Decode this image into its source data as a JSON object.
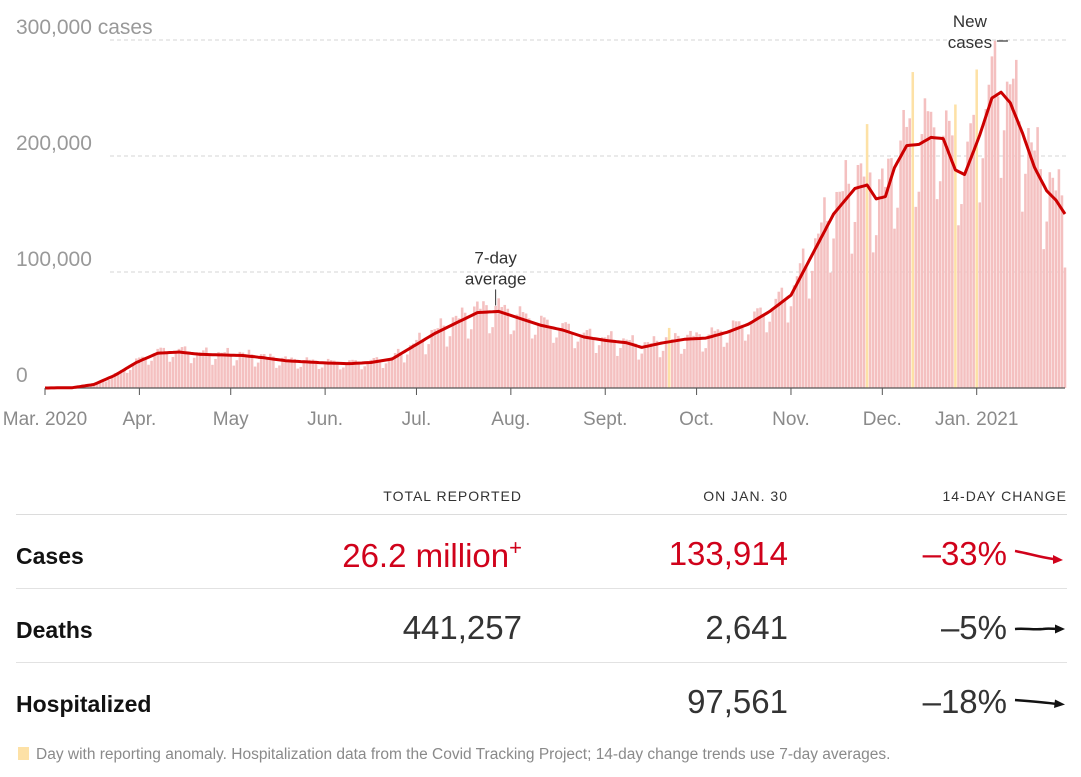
{
  "chart_data": {
    "type": "bar",
    "title": "",
    "xlabel": "",
    "ylabel": "",
    "ylim": [
      0,
      300000
    ],
    "y_ticks": [
      {
        "value": 300000,
        "label": "300,000 cases"
      },
      {
        "value": 200000,
        "label": "200,000"
      },
      {
        "value": 100000,
        "label": "100,000"
      },
      {
        "value": 0,
        "label": "0"
      }
    ],
    "x_start": "2020-03-01",
    "x_end": "2021-01-30",
    "x_ticks": [
      {
        "date": "2020-03-01",
        "label": "Mar. 2020"
      },
      {
        "date": "2020-04-01",
        "label": "Apr."
      },
      {
        "date": "2020-05-01",
        "label": "May"
      },
      {
        "date": "2020-06-01",
        "label": "Jun."
      },
      {
        "date": "2020-07-01",
        "label": "Jul."
      },
      {
        "date": "2020-08-01",
        "label": "Aug."
      },
      {
        "date": "2020-09-01",
        "label": "Sept."
      },
      {
        "date": "2020-10-01",
        "label": "Oct."
      },
      {
        "date": "2020-11-01",
        "label": "Nov."
      },
      {
        "date": "2020-12-01",
        "label": "Dec."
      },
      {
        "date": "2021-01-01",
        "label": "Jan. 2021"
      }
    ],
    "gridlines": true,
    "series": [
      {
        "name": "7-day average",
        "type": "line",
        "color": "#cc0000",
        "points": [
          [
            "2020-03-01",
            0
          ],
          [
            "2020-03-10",
            300
          ],
          [
            "2020-03-17",
            3000
          ],
          [
            "2020-03-24",
            11000
          ],
          [
            "2020-03-31",
            22000
          ],
          [
            "2020-04-07",
            30000
          ],
          [
            "2020-04-14",
            31000
          ],
          [
            "2020-04-21",
            29000
          ],
          [
            "2020-04-28",
            28500
          ],
          [
            "2020-05-05",
            28000
          ],
          [
            "2020-05-12",
            26000
          ],
          [
            "2020-05-19",
            23500
          ],
          [
            "2020-05-26",
            22500
          ],
          [
            "2020-06-02",
            21500
          ],
          [
            "2020-06-09",
            21000
          ],
          [
            "2020-06-16",
            22000
          ],
          [
            "2020-06-23",
            25000
          ],
          [
            "2020-06-30",
            36000
          ],
          [
            "2020-07-07",
            47000
          ],
          [
            "2020-07-14",
            56000
          ],
          [
            "2020-07-21",
            65000
          ],
          [
            "2020-07-28",
            66000
          ],
          [
            "2020-08-04",
            60000
          ],
          [
            "2020-08-11",
            54000
          ],
          [
            "2020-08-18",
            50000
          ],
          [
            "2020-08-25",
            44000
          ],
          [
            "2020-09-01",
            41000
          ],
          [
            "2020-09-08",
            39000
          ],
          [
            "2020-09-13",
            35000
          ],
          [
            "2020-09-20",
            39000
          ],
          [
            "2020-09-27",
            42000
          ],
          [
            "2020-10-04",
            43000
          ],
          [
            "2020-10-11",
            48000
          ],
          [
            "2020-10-18",
            55000
          ],
          [
            "2020-10-25",
            66000
          ],
          [
            "2020-11-01",
            80000
          ],
          [
            "2020-11-08",
            115000
          ],
          [
            "2020-11-15",
            150000
          ],
          [
            "2020-11-22",
            172000
          ],
          [
            "2020-11-26",
            175000
          ],
          [
            "2020-11-29",
            163000
          ],
          [
            "2020-12-02",
            165000
          ],
          [
            "2020-12-05",
            190000
          ],
          [
            "2020-12-09",
            209000
          ],
          [
            "2020-12-13",
            210000
          ],
          [
            "2020-12-17",
            216000
          ],
          [
            "2020-12-21",
            215000
          ],
          [
            "2020-12-25",
            188000
          ],
          [
            "2020-12-28",
            184000
          ],
          [
            "2021-01-02",
            218000
          ],
          [
            "2021-01-06",
            250000
          ],
          [
            "2021-01-09",
            255000
          ],
          [
            "2021-01-12",
            246000
          ],
          [
            "2021-01-16",
            220000
          ],
          [
            "2021-01-20",
            190000
          ],
          [
            "2021-01-24",
            170000
          ],
          [
            "2021-01-27",
            162000
          ],
          [
            "2021-01-30",
            150000
          ]
        ]
      },
      {
        "name": "New cases",
        "type": "bar",
        "color": "#f4c0c0",
        "note": "daily values follow the 7-day average with weekly variation"
      }
    ],
    "anomaly_days": [
      "2020-09-22",
      "2020-11-26",
      "2020-12-11",
      "2020-12-25",
      "2021-01-01"
    ],
    "anomaly_color": "#fde1a6",
    "annotations": [
      {
        "label": [
          "7-day",
          "average"
        ],
        "date": "2020-07-27",
        "value": 66000
      },
      {
        "label": [
          "New",
          "cases"
        ],
        "date": "2021-01-06",
        "value": 300000
      }
    ]
  },
  "table": {
    "headers": {
      "total": "TOTAL REPORTED",
      "today": "ON JAN. 30",
      "change": "14-DAY CHANGE"
    },
    "rows": [
      {
        "label": "Cases",
        "total": "26.2 million",
        "total_suffix": "+",
        "today": "133,914",
        "change": "–33%",
        "trend": "down",
        "color": "#d0021b"
      },
      {
        "label": "Deaths",
        "total": "441,257",
        "total_suffix": "",
        "today": "2,641",
        "change": "–5%",
        "trend": "flat",
        "color": "#121212"
      },
      {
        "label": "Hospitalized",
        "total": "",
        "total_suffix": "",
        "today": "97,561",
        "change": "–18%",
        "trend": "flat",
        "color": "#121212"
      }
    ]
  },
  "footnote": "Day with reporting anomaly. Hospitalization data from the Covid Tracking Project; 14-day change trends use 7-day averages."
}
